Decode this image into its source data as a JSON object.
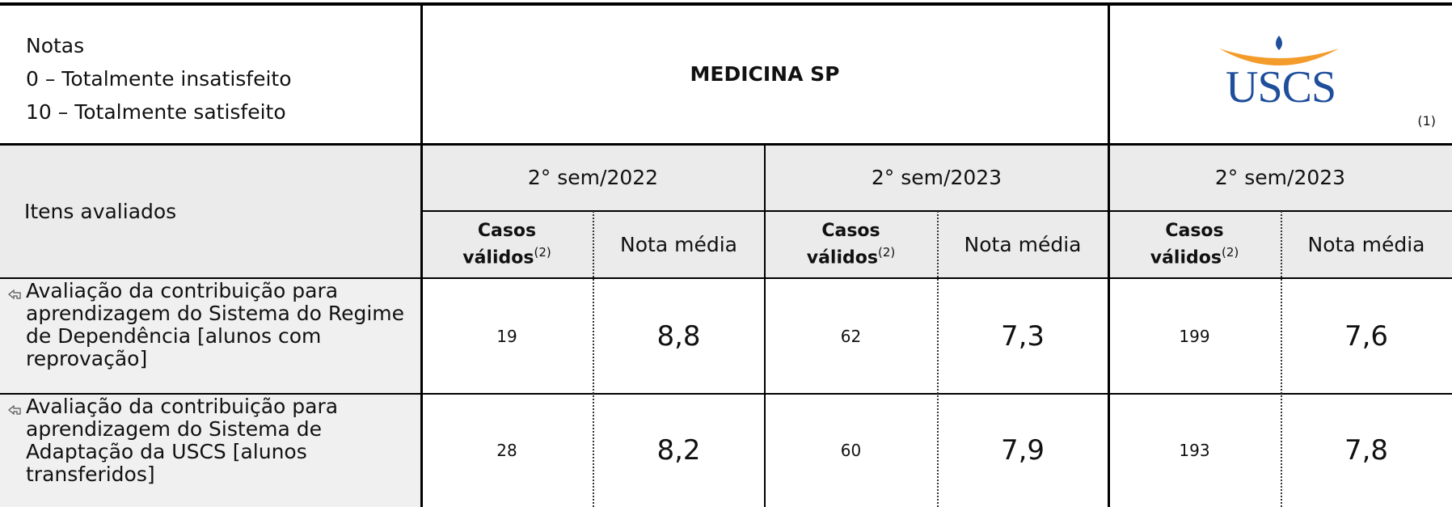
{
  "legend": {
    "title": "Notas",
    "lines": [
      "0 – Totalmente insatisfeito",
      "10 – Totalmente satisfeito"
    ]
  },
  "header": {
    "course": "MEDICINA SP",
    "logo": "USCS",
    "logo_note": "(1)"
  },
  "table": {
    "row_header": "Itens avaliados",
    "periods": [
      "2° sem/2022",
      "2° sem/2023",
      "2° sem/2023"
    ],
    "columns": {
      "cases": "Casos",
      "cases_line2": "válidos",
      "cases_note": "(2)",
      "mean": "Nota média"
    },
    "rows": [
      {
        "item": "Avaliação da contribuição para aprendizagem do Sistema do Regime de Dependência  [alunos com reprovação]",
        "cells": [
          [
            "19",
            "8,8"
          ],
          [
            "62",
            "7,3"
          ],
          [
            "199",
            "7,6"
          ]
        ]
      },
      {
        "item": "Avaliação da contribuição para aprendizagem do Sistema de Adaptação da USCS  [alunos transferidos]",
        "cells": [
          [
            "28",
            "8,2"
          ],
          [
            "60",
            "7,9"
          ],
          [
            "193",
            "7,8"
          ]
        ]
      }
    ]
  }
}
